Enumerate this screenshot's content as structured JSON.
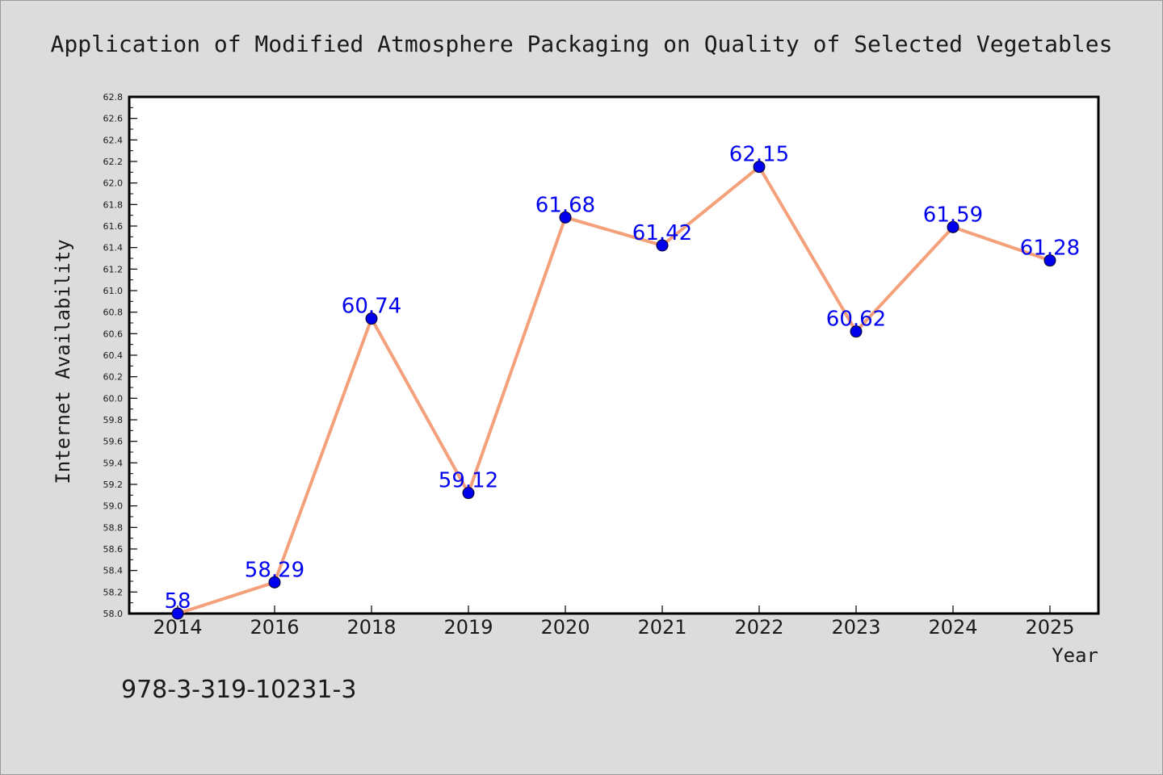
{
  "chart_data": {
    "type": "line",
    "title": "Application of Modified Atmosphere Packaging on Quality of Selected Vegetables",
    "xlabel": "Year",
    "ylabel": "Internet Availability",
    "categories": [
      "2014",
      "2016",
      "2018",
      "2019",
      "2020",
      "2021",
      "2022",
      "2023",
      "2024",
      "2025"
    ],
    "series": [
      {
        "values": [
          58.0,
          58.29,
          60.74,
          59.12,
          61.68,
          61.42,
          62.15,
          60.62,
          61.59,
          61.28
        ],
        "data_labels": [
          "58",
          "58.29",
          "60.74",
          "59.12",
          "61.68",
          "61.42",
          "62.15",
          "60.62",
          "61.59",
          "61.28"
        ],
        "line_color": "#f4a07a",
        "marker_color": "#0000ee"
      }
    ],
    "ylim": [
      58.0,
      62.8
    ],
    "yticks": [
      "58.0",
      "58.2",
      "58.4",
      "58.6",
      "58.8",
      "59.0",
      "59.2",
      "59.4",
      "59.6",
      "59.8",
      "60.0",
      "60.2",
      "60.4",
      "60.6",
      "60.8",
      "61.0",
      "61.2",
      "61.4",
      "61.6",
      "61.8",
      "62.0",
      "62.2",
      "62.4",
      "62.6",
      "62.8"
    ],
    "grid": false,
    "legend": "none"
  },
  "footer": {
    "isbn": "978-3-319-10231-3"
  },
  "colors": {
    "background": "#dcdcdc",
    "plot_background": "#ffffff",
    "label_color": "#0000ee",
    "text": "#1a1a1a"
  }
}
